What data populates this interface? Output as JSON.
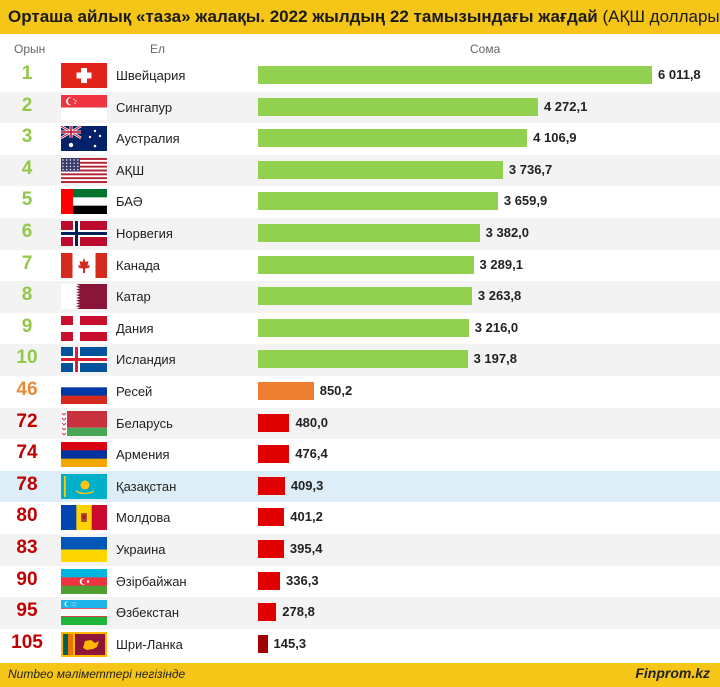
{
  "header": {
    "title_bold": "Орташа айлық «таза» жалақы. 2022 жылдың 22 тамызындағы жағдай",
    "title_rest": " (АҚШ доллары)",
    "col_rank": "Орын",
    "col_country": "Ел",
    "col_amount": "Сома"
  },
  "footer": {
    "source": "Numbeo мәліметтері негізінде",
    "brand": "Finprom.kz"
  },
  "colors": {
    "accent": "#f5c518",
    "green": "#92d050",
    "orange": "#ed7d31",
    "red": "#e00000",
    "darkred": "#a00000",
    "rank_green": "#92c84a",
    "rank_orange": "#e88a3c",
    "rank_red": "#c00000"
  },
  "chart_data": {
    "type": "bar",
    "title": "Орташа айлық «таза» жалақы. 2022 жылдың 22 тамызындағы жағдай (АҚШ доллары)",
    "xlabel": "Сома",
    "ylabel": "Ел",
    "xlim": [
      0,
      6011.8
    ],
    "grid": false,
    "categories": [
      "Швейцария",
      "Сингапур",
      "Аустралия",
      "АҚШ",
      "БАӘ",
      "Норвегия",
      "Канада",
      "Катар",
      "Дания",
      "Исландия",
      "Ресей",
      "Беларусь",
      "Армения",
      "Қазақстан",
      "Молдова",
      "Украина",
      "Әзірбайжан",
      "Өзбекстан",
      "Шри-Ланка"
    ],
    "ranks": [
      "1",
      "2",
      "3",
      "4",
      "5",
      "6",
      "7",
      "8",
      "9",
      "10",
      "46",
      "72",
      "74",
      "78",
      "80",
      "83",
      "90",
      "95",
      "105"
    ],
    "values": [
      6011.8,
      4272.1,
      4106.9,
      3736.7,
      3659.9,
      3382.0,
      3289.1,
      3263.8,
      3216.0,
      3197.8,
      850.2,
      480.0,
      476.4,
      409.3,
      401.2,
      395.4,
      336.3,
      278.8,
      145.3
    ],
    "labels": [
      "6 011,8",
      "4 272,1",
      "4 106,9",
      "3 736,7",
      "3 659,9",
      "3 382,0",
      "3 289,1",
      "3 263,8",
      "3 216,0",
      "3 197,8",
      "850,2",
      "480,0",
      "476,4",
      "409,3",
      "401,2",
      "395,4",
      "336,3",
      "278,8",
      "145,3"
    ],
    "bar_colors": [
      "green",
      "green",
      "green",
      "green",
      "green",
      "green",
      "green",
      "green",
      "green",
      "green",
      "orange",
      "red",
      "red",
      "red",
      "red",
      "red",
      "red",
      "red",
      "darkred"
    ],
    "rank_colors": [
      "rank_green",
      "rank_green",
      "rank_green",
      "rank_green",
      "rank_green",
      "rank_green",
      "rank_green",
      "rank_green",
      "rank_green",
      "rank_green",
      "rank_orange",
      "rank_red",
      "rank_red",
      "rank_red",
      "rank_red",
      "rank_red",
      "rank_red",
      "rank_red",
      "rank_red"
    ],
    "highlighted": "Қазақстан",
    "flags": [
      "switzerland-flag-icon",
      "singapore-flag-icon",
      "australia-flag-icon",
      "usa-flag-icon",
      "uae-flag-icon",
      "norway-flag-icon",
      "canada-flag-icon",
      "qatar-flag-icon",
      "denmark-flag-icon",
      "iceland-flag-icon",
      "russia-flag-icon",
      "belarus-flag-icon",
      "armenia-flag-icon",
      "kazakhstan-flag-icon",
      "moldova-flag-icon",
      "ukraine-flag-icon",
      "azerbaijan-flag-icon",
      "uzbekistan-flag-icon",
      "sri-lanka-flag-icon"
    ]
  }
}
